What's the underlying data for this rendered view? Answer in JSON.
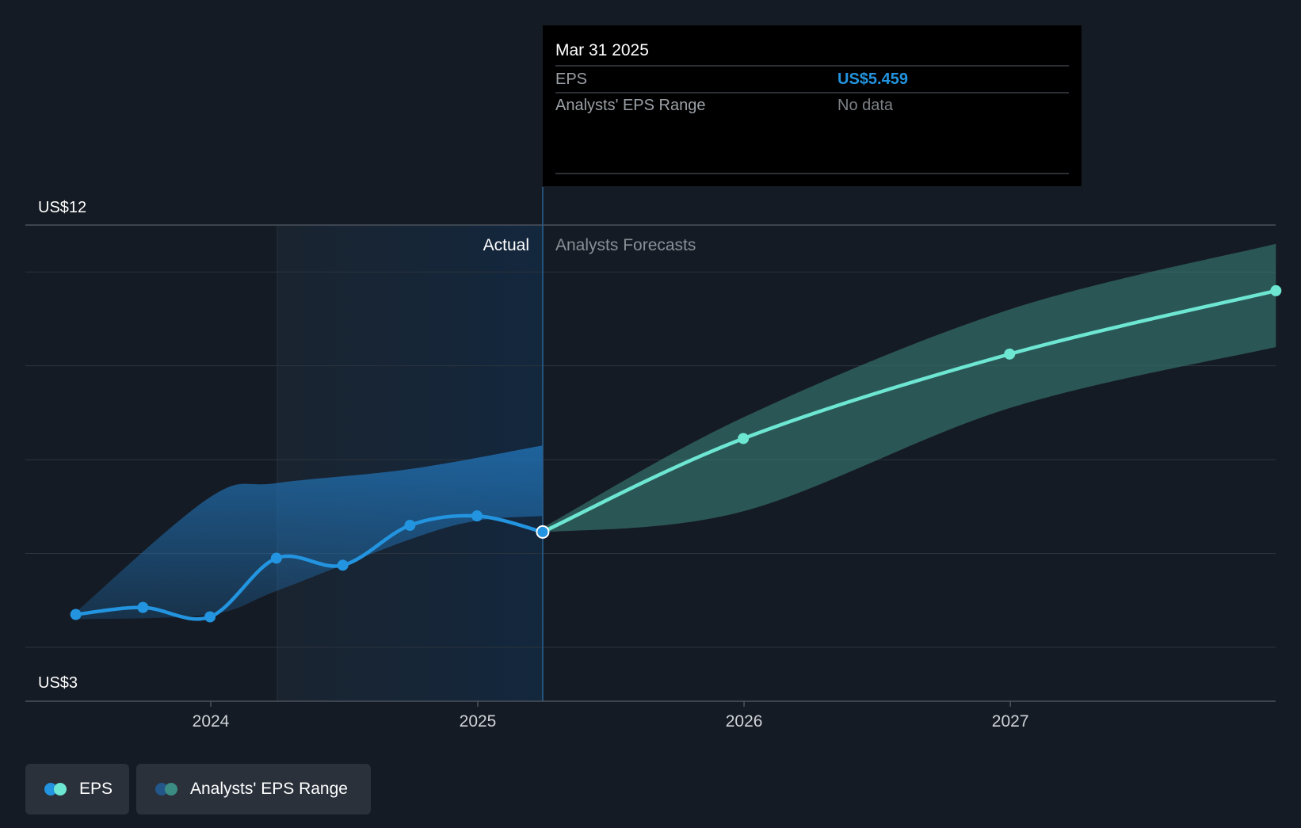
{
  "tooltip": {
    "date": "Mar 31 2025",
    "rows": [
      {
        "label": "EPS",
        "value": "US$5.459",
        "value_color": "#2394df"
      },
      {
        "label": "Analysts' EPS Range",
        "value": "No data",
        "value_color": "#7c8187"
      }
    ]
  },
  "region_labels": {
    "actual": "Actual",
    "forecast": "Analysts Forecasts"
  },
  "legend": {
    "eps": {
      "label": "EPS",
      "colors": [
        "#2394df",
        "#6de6d2"
      ]
    },
    "range": {
      "label": "Analysts' EPS Range",
      "colors": [
        "#23578a",
        "#3b8c83"
      ]
    }
  },
  "colors": {
    "actual": "#2394df",
    "forecast": "#6de6d2",
    "actual_band": "#2276b8",
    "forecast_band": "#3b7f78",
    "background": "#151b24"
  },
  "chart_data": {
    "type": "line",
    "x_axis": {
      "ticks": [
        "2024",
        "2025",
        "2026",
        "2027"
      ]
    },
    "y_axis": {
      "labels": [
        "US$12",
        "US$3"
      ],
      "range": [
        3,
        12
      ],
      "gridlines": [
        3,
        5,
        7,
        9,
        11,
        12
      ]
    },
    "divider_date": "2025-03-31",
    "highlight_start": "2024-03-31",
    "series": [
      {
        "name": "EPS",
        "kind": "actual",
        "points": [
          {
            "x": "2023-06-30",
            "y": 3.7
          },
          {
            "x": "2023-09-30",
            "y": 3.85
          },
          {
            "x": "2023-12-31",
            "y": 3.65
          },
          {
            "x": "2024-03-31",
            "y": 4.9
          },
          {
            "x": "2024-06-30",
            "y": 4.75
          },
          {
            "x": "2024-09-30",
            "y": 5.6
          },
          {
            "x": "2024-12-31",
            "y": 5.8
          },
          {
            "x": "2025-03-31",
            "y": 5.459
          }
        ]
      },
      {
        "name": "EPS",
        "kind": "forecast",
        "points": [
          {
            "x": "2025-03-31",
            "y": 5.459
          },
          {
            "x": "2025-12-31",
            "y": 7.45
          },
          {
            "x": "2026-12-31",
            "y": 9.25
          },
          {
            "x": "2027-12-31",
            "y": 10.6
          }
        ]
      }
    ],
    "bands": [
      {
        "name": "Analysts' EPS Range",
        "kind": "actual",
        "upper": [
          {
            "x": "2023-06-30",
            "y": 3.75
          },
          {
            "x": "2023-12-31",
            "y": 6.2
          },
          {
            "x": "2024-03-31",
            "y": 6.5
          },
          {
            "x": "2024-09-30",
            "y": 6.8
          },
          {
            "x": "2025-03-31",
            "y": 7.3
          }
        ],
        "lower": [
          {
            "x": "2025-03-31",
            "y": 5.8
          },
          {
            "x": "2024-12-31",
            "y": 5.7
          },
          {
            "x": "2024-09-30",
            "y": 5.3
          },
          {
            "x": "2024-03-31",
            "y": 4.2
          },
          {
            "x": "2023-12-31",
            "y": 3.7
          },
          {
            "x": "2023-06-30",
            "y": 3.6
          }
        ]
      },
      {
        "name": "Analysts' EPS Range",
        "kind": "forecast",
        "upper": [
          {
            "x": "2025-03-31",
            "y": 5.55
          },
          {
            "x": "2025-12-31",
            "y": 7.9
          },
          {
            "x": "2026-12-31",
            "y": 10.2
          },
          {
            "x": "2027-12-31",
            "y": 11.6
          }
        ],
        "lower": [
          {
            "x": "2027-12-31",
            "y": 9.4
          },
          {
            "x": "2026-12-31",
            "y": 8.1
          },
          {
            "x": "2025-12-31",
            "y": 5.9
          },
          {
            "x": "2025-03-31",
            "y": 5.45
          }
        ]
      }
    ]
  }
}
